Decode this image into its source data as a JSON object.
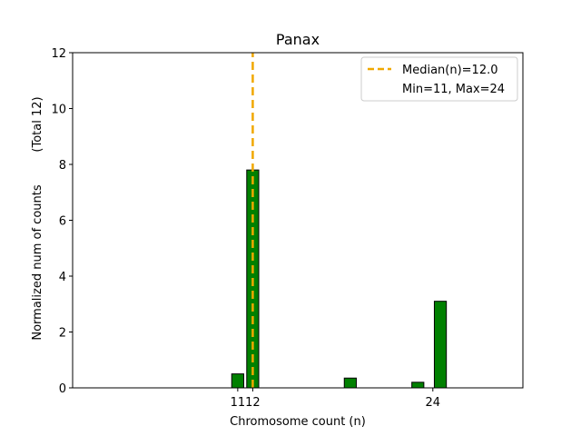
{
  "chart_data": {
    "type": "bar",
    "title": "Panax",
    "xlabel": "Chromosome count (n)",
    "ylabel": "Normalized num of counts",
    "ylabel_note": "(Total 12)",
    "xlim": [
      0,
      30
    ],
    "ylim": [
      0,
      12
    ],
    "yticks": [
      0,
      2,
      4,
      6,
      8,
      10,
      12
    ],
    "xtick_labels": [
      {
        "x": 11,
        "label": "11"
      },
      {
        "x": 12,
        "label": "12"
      },
      {
        "x": 24,
        "label": "24"
      }
    ],
    "bars": [
      {
        "x": 11,
        "value": 0.5
      },
      {
        "x": 12,
        "value": 7.8
      },
      {
        "x": 18.5,
        "value": 0.35
      },
      {
        "x": 23,
        "value": 0.2
      },
      {
        "x": 24.5,
        "value": 3.1
      }
    ],
    "bar_width": 0.8,
    "bar_color": "#008000",
    "median": {
      "value": 12.0,
      "color": "#f0a800",
      "label": "Median(n)=12.0"
    },
    "legend": {
      "placement": "top-right",
      "entries": [
        "Median(n)=12.0",
        "Min=11, Max=24"
      ]
    }
  }
}
